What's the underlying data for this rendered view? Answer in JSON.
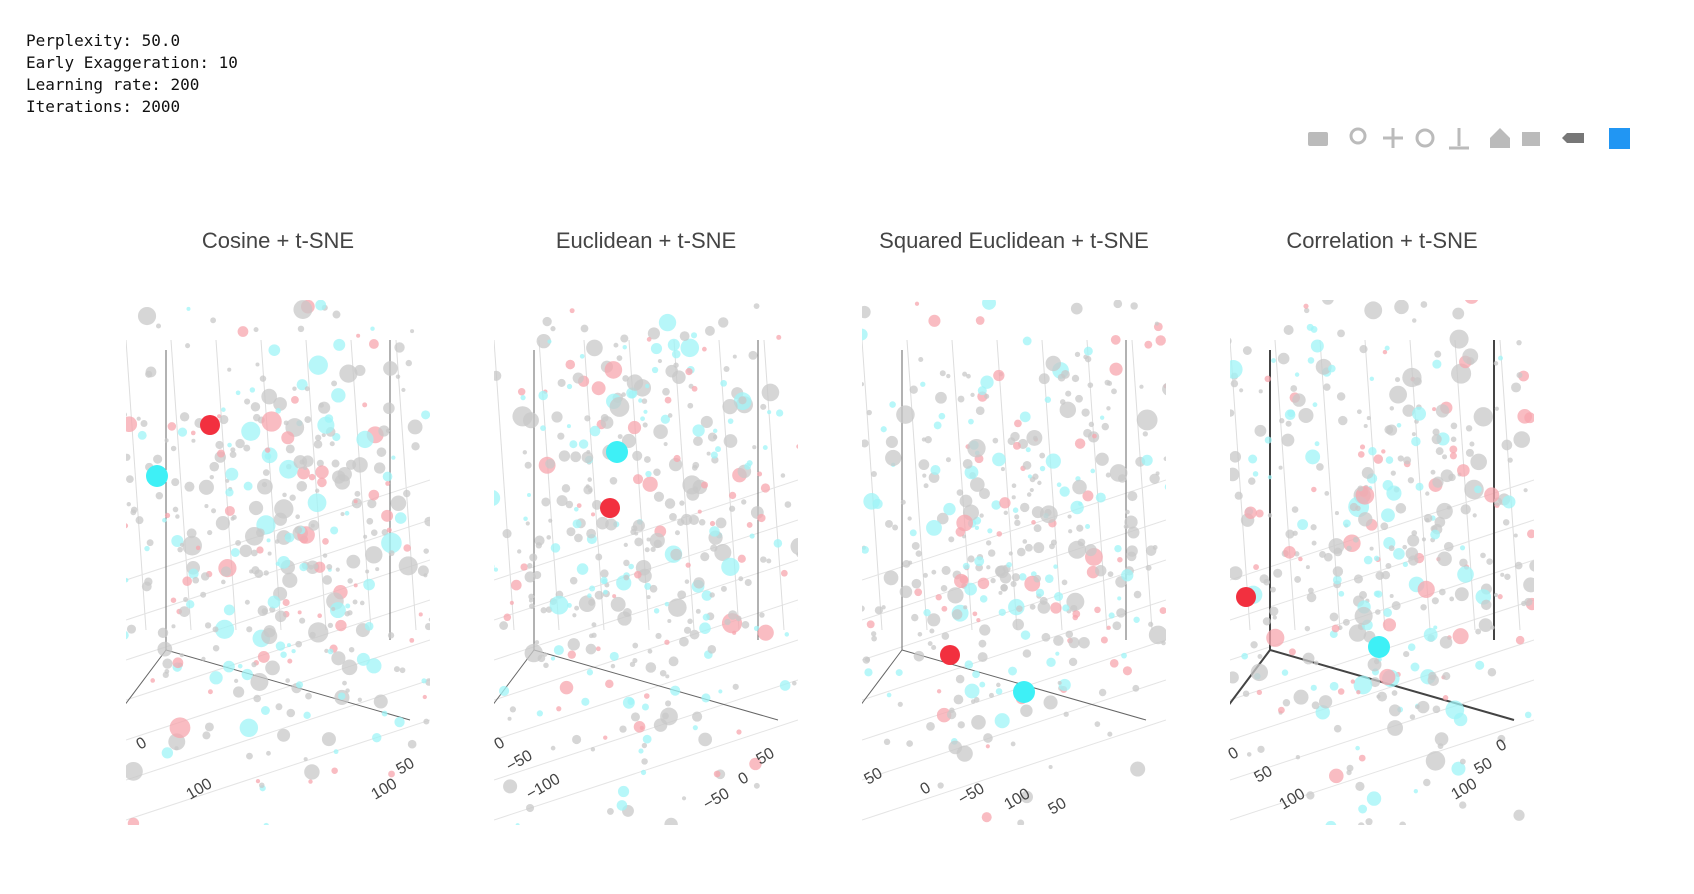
{
  "parameters": [
    "Perplexity: 50.0",
    "Early Exaggeration: 10",
    "Learning rate: 200",
    "Iterations: 2000"
  ],
  "panels": [
    {
      "title": "Cosine + t-SNE",
      "tick_labels": [
        "0",
        "100",
        "50",
        "100"
      ]
    },
    {
      "title": "Euclidean + t-SNE",
      "tick_labels": [
        "0",
        "−50",
        "−100",
        "50",
        "0",
        "−50"
      ]
    },
    {
      "title": "Squared Euclidean + t-SNE",
      "tick_labels": [
        "50",
        "0",
        "−50",
        "100",
        "50"
      ]
    },
    {
      "title": "Correlation + t-SNE",
      "tick_labels": [
        "0",
        "50",
        "100",
        "0",
        "50",
        "100"
      ]
    }
  ]
}
